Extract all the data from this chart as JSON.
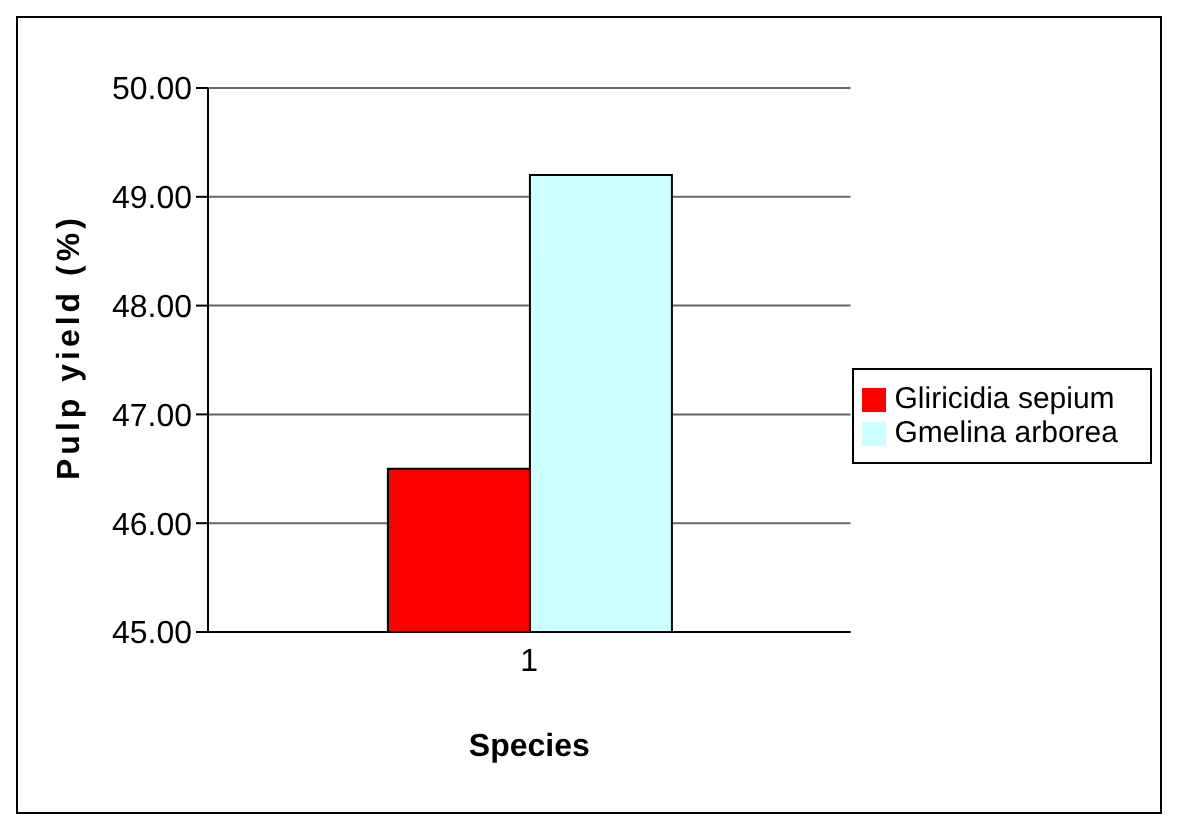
{
  "chart_data": {
    "type": "bar",
    "xlabel": "Species",
    "ylabel": "Pulp yield (%)",
    "categories": [
      "1"
    ],
    "series": [
      {
        "name": "Gliricidia sepium",
        "color": "#ff0000",
        "values": [
          46.5
        ]
      },
      {
        "name": "Gmelina arborea",
        "color": "#ccffff",
        "values": [
          49.2
        ]
      }
    ],
    "ylim": [
      45,
      50
    ],
    "yticks": [
      {
        "value": 45,
        "label": "45.00"
      },
      {
        "value": 46,
        "label": "46.00"
      },
      {
        "value": 47,
        "label": "47.00"
      },
      {
        "value": 48,
        "label": "48.00"
      },
      {
        "value": 49,
        "label": "49.00"
      },
      {
        "value": 50,
        "label": "50.00"
      }
    ],
    "grid": "y",
    "legend": "right"
  }
}
